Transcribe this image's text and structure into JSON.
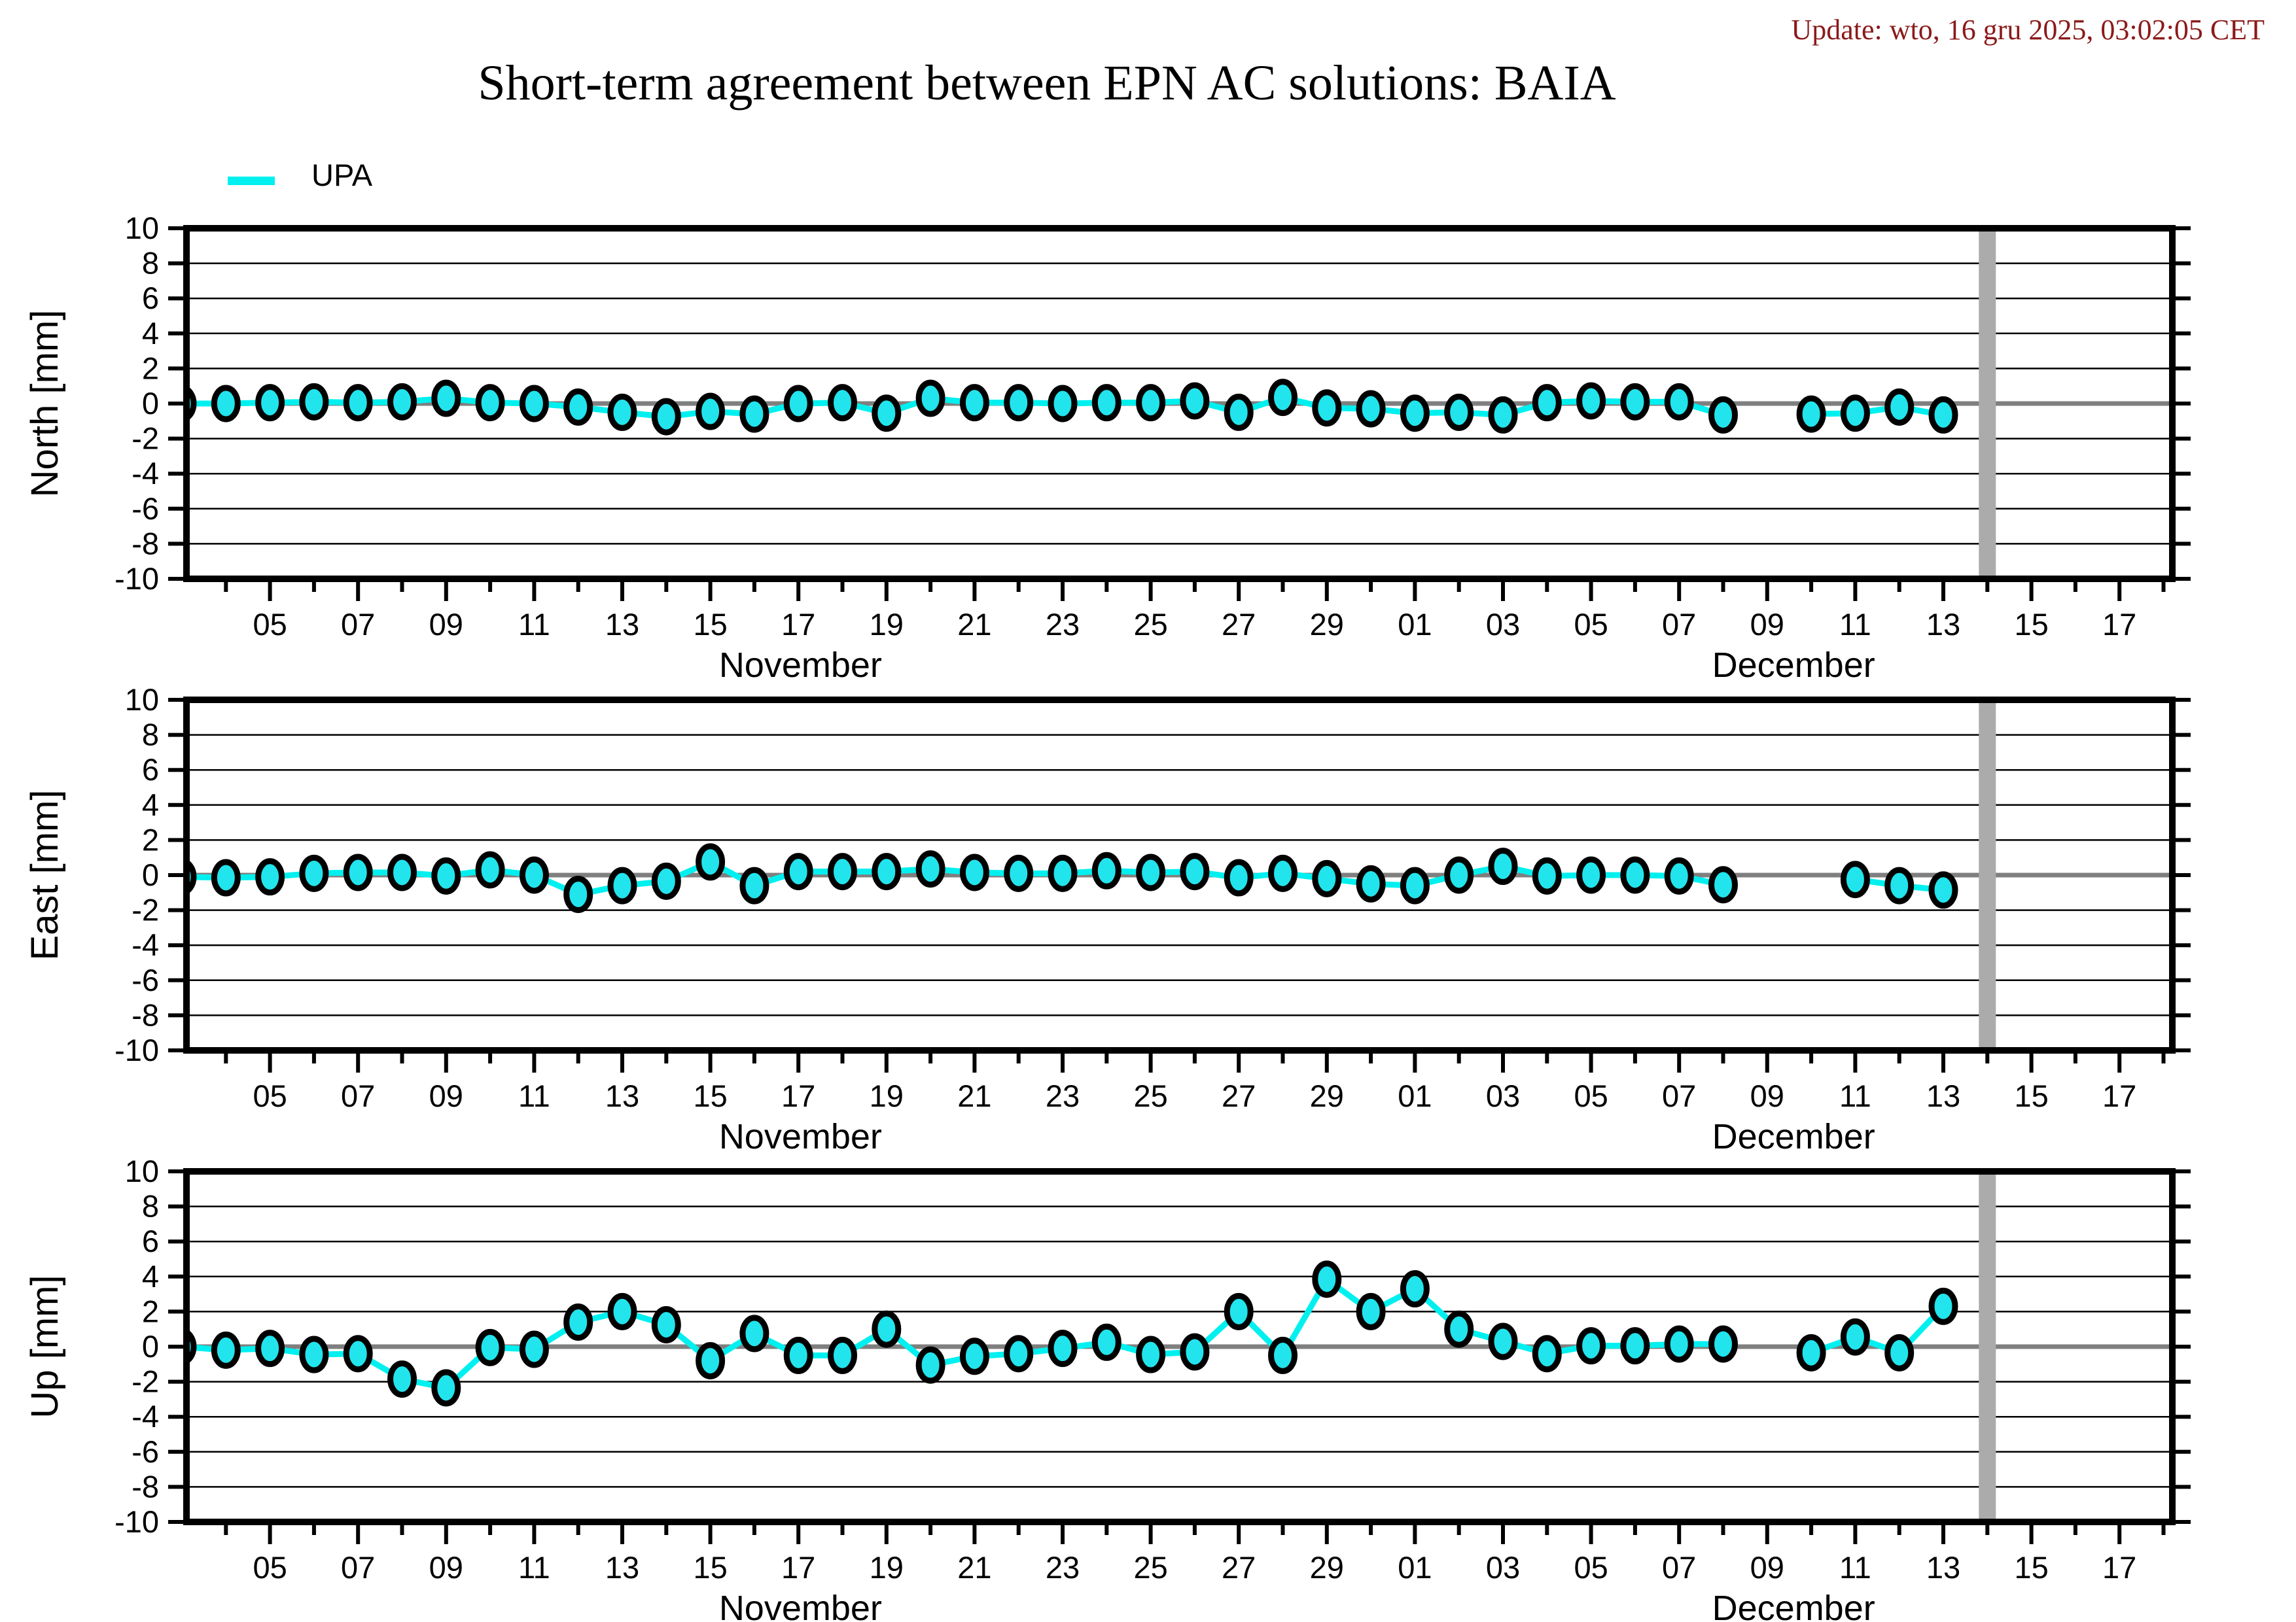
{
  "header": {
    "title": "Short-term agreement between EPN AC solutions: BAIA",
    "update_text": "Update: wto, 16 gru 2025, 03:02:05 CET",
    "update_color": "#8B1A1A"
  },
  "legend": {
    "items": [
      {
        "label": "UPA",
        "color": "#00F0F0"
      }
    ]
  },
  "chart_data": {
    "type": "line",
    "title": "Short-term agreement between EPN AC solutions: BAIA",
    "legend_entries": [
      "UPA"
    ],
    "ylim": [
      -10,
      10
    ],
    "ytick_step": 2,
    "grid": "horizontal-only",
    "zero_line_color": "#7F7F7F",
    "line_color": "#00F0F0",
    "marker": {
      "shape": "ellipse",
      "fill": "#22E4EC",
      "outline": "#000000"
    },
    "now_bar": {
      "month": "December",
      "day": 14,
      "color": "#ABABAB"
    },
    "x_dates": [
      "Nov 03",
      "Nov 04",
      "Nov 05",
      "Nov 06",
      "Nov 07",
      "Nov 08",
      "Nov 09",
      "Nov 10",
      "Nov 11",
      "Nov 12",
      "Nov 13",
      "Nov 14",
      "Nov 15",
      "Nov 16",
      "Nov 17",
      "Nov 18",
      "Nov 19",
      "Nov 20",
      "Nov 21",
      "Nov 22",
      "Nov 23",
      "Nov 24",
      "Nov 25",
      "Nov 26",
      "Nov 27",
      "Nov 28",
      "Nov 29",
      "Nov 30",
      "Dec 01",
      "Dec 02",
      "Dec 03",
      "Dec 04",
      "Dec 05",
      "Dec 06",
      "Dec 07",
      "Dec 08",
      "Dec 09",
      "Dec 10",
      "Dec 11",
      "Dec 12",
      "Dec 13"
    ],
    "x_axis": {
      "months": [
        {
          "name": "November",
          "first_day": 3,
          "last_day": 30,
          "labeled_days": [
            5,
            7,
            9,
            11,
            13,
            15,
            17,
            19,
            21,
            23,
            25,
            27,
            29
          ]
        },
        {
          "name": "December",
          "first_day": 1,
          "last_day": 18,
          "labeled_days": [
            1,
            3,
            5,
            7,
            9,
            11,
            13,
            15,
            17
          ]
        }
      ]
    },
    "panels": [
      {
        "ylabel": "North [mm]",
        "values": [
          0.0,
          0.0,
          0.05,
          0.1,
          0.05,
          0.1,
          0.3,
          0.05,
          0.0,
          -0.2,
          -0.5,
          -0.75,
          -0.45,
          -0.6,
          0.0,
          0.05,
          -0.55,
          0.3,
          0.05,
          0.05,
          0.0,
          0.05,
          0.05,
          0.15,
          -0.5,
          0.35,
          -0.25,
          -0.3,
          -0.55,
          -0.5,
          -0.65,
          0.05,
          0.15,
          0.1,
          0.1,
          -0.65,
          null,
          -0.6,
          -0.55,
          -0.2,
          -0.65
        ]
      },
      {
        "ylabel": "East [mm]",
        "values": [
          -0.1,
          -0.15,
          -0.1,
          0.1,
          0.15,
          0.15,
          -0.05,
          0.3,
          0.0,
          -1.1,
          -0.6,
          -0.35,
          0.75,
          -0.6,
          0.2,
          0.2,
          0.2,
          0.35,
          0.15,
          0.1,
          0.1,
          0.25,
          0.15,
          0.2,
          -0.15,
          0.1,
          -0.2,
          -0.5,
          -0.6,
          0.0,
          0.5,
          -0.05,
          0.0,
          0.0,
          -0.05,
          -0.55,
          null,
          null,
          -0.25,
          -0.6,
          -0.85
        ]
      },
      {
        "ylabel": "Up [mm]",
        "values": [
          0.0,
          -0.2,
          -0.1,
          -0.45,
          -0.4,
          -1.85,
          -2.35,
          -0.05,
          -0.15,
          1.4,
          2.0,
          1.25,
          -0.8,
          0.75,
          -0.5,
          -0.5,
          1.0,
          -1.05,
          -0.55,
          -0.4,
          -0.1,
          0.25,
          -0.45,
          -0.3,
          2.0,
          -0.5,
          3.85,
          2.0,
          3.3,
          1.0,
          0.3,
          -0.4,
          0.05,
          0.05,
          0.15,
          0.15,
          null,
          -0.35,
          0.55,
          -0.35,
          2.3
        ]
      }
    ]
  }
}
